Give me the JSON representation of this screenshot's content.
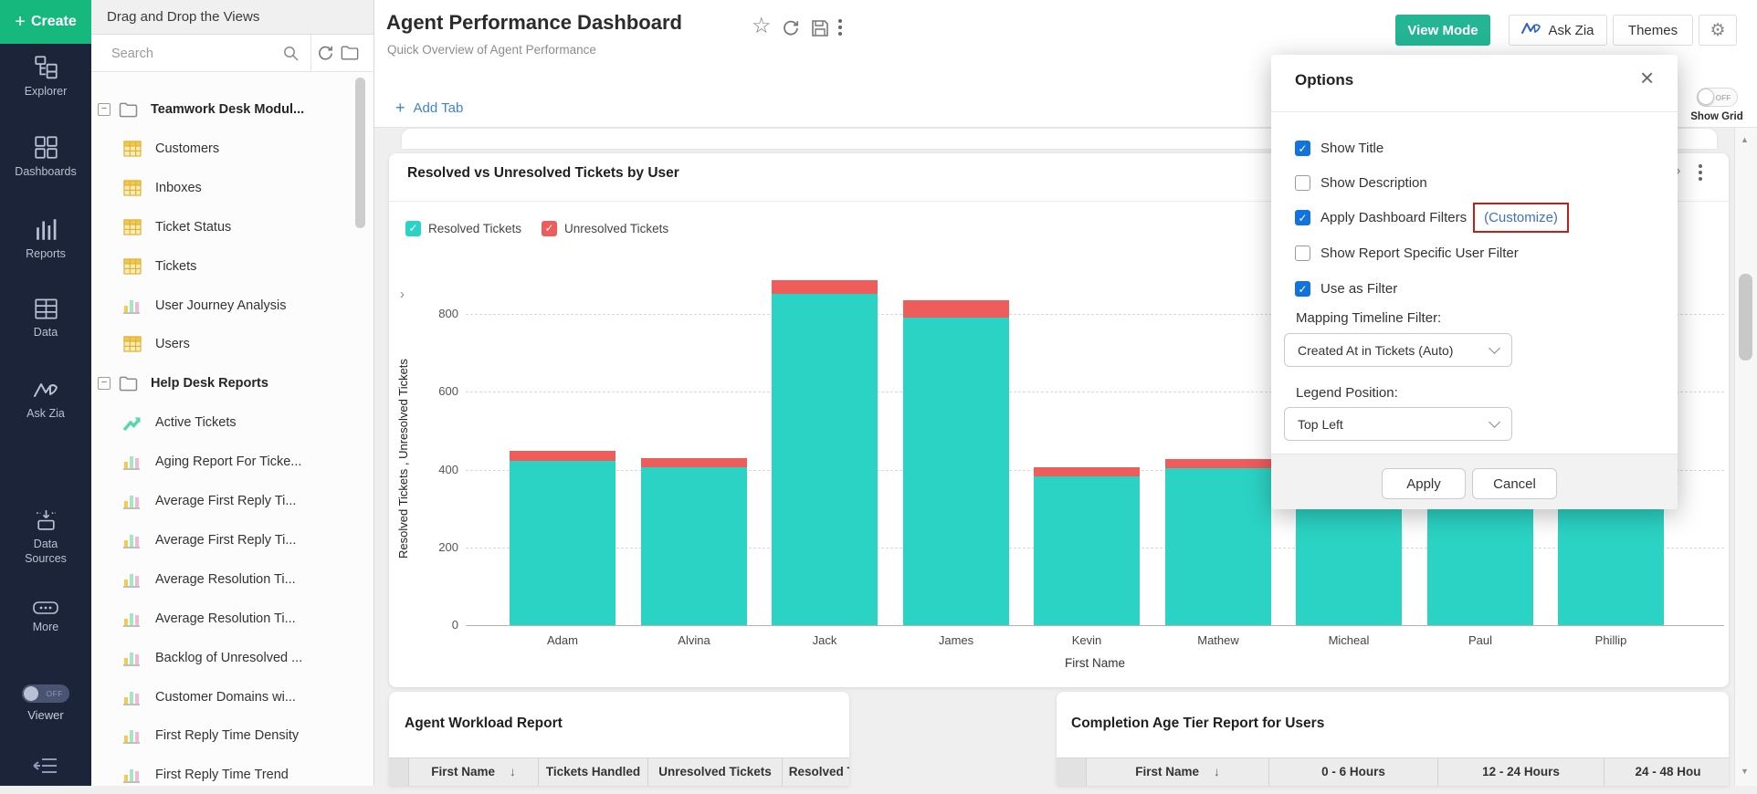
{
  "colors": {
    "nav_bg": "#1b2438",
    "create_green": "#17b87e",
    "view_mode_teal": "#23b594",
    "resolved_teal": "#2bd3c4",
    "unresolved_red": "#ee5c5c",
    "checkbox_blue": "#1273de",
    "annotation_red": "#c1201a",
    "link_blue": "#3b6fd8"
  },
  "left_nav": {
    "create_label": "Create",
    "items": [
      {
        "icon": "explorer-icon",
        "label": "Explorer"
      },
      {
        "icon": "dashboards-icon",
        "label": "Dashboards"
      },
      {
        "icon": "reports-icon",
        "label": "Reports"
      },
      {
        "icon": "data-icon",
        "label": "Data"
      },
      {
        "icon": "ask-zia-icon",
        "label": "Ask Zia"
      },
      {
        "icon": "data-sources-icon",
        "label": "Data Sources"
      },
      {
        "icon": "more-icon",
        "label": "More"
      }
    ],
    "viewer": {
      "label": "Viewer",
      "state": "OFF"
    }
  },
  "views_panel": {
    "header": "Drag and Drop the Views",
    "search_placeholder": "Search",
    "tree": [
      {
        "type": "folder",
        "label": "Teamwork Desk Modul..."
      },
      {
        "type": "table",
        "label": "Customers"
      },
      {
        "type": "table",
        "label": "Inboxes"
      },
      {
        "type": "table",
        "label": "Ticket Status"
      },
      {
        "type": "table",
        "label": "Tickets"
      },
      {
        "type": "chart",
        "label": "User Journey Analysis"
      },
      {
        "type": "table",
        "label": "Users"
      },
      {
        "type": "folder",
        "label": "Help Desk Reports"
      },
      {
        "type": "trend",
        "label": "Active Tickets"
      },
      {
        "type": "chart",
        "label": "Aging Report For Ticke..."
      },
      {
        "type": "chart",
        "label": "Average First Reply Ti..."
      },
      {
        "type": "chart",
        "label": "Average First Reply Ti..."
      },
      {
        "type": "chart",
        "label": "Average Resolution Ti..."
      },
      {
        "type": "chart",
        "label": "Average Resolution Ti..."
      },
      {
        "type": "chart",
        "label": "Backlog of Unresolved ..."
      },
      {
        "type": "chart",
        "label": "Customer Domains wi..."
      },
      {
        "type": "chart",
        "label": "First Reply Time Density"
      },
      {
        "type": "chart",
        "label": "First Reply Time Trend"
      }
    ]
  },
  "header": {
    "title": "Agent Performance Dashboard",
    "subtitle": "Quick Overview of Agent Performance",
    "icons": [
      "star-icon",
      "refresh-icon",
      "save-icon",
      "more-menu-icon"
    ],
    "buttons": {
      "view_mode": "View Mode",
      "ask_zia": "Ask Zia",
      "themes": "Themes"
    }
  },
  "toolbar": {
    "add_tab": "Add Tab",
    "show_grid": {
      "label": "Show Grid",
      "state": "OFF"
    }
  },
  "chart_card": {
    "title": "Resolved vs Unresolved Tickets by User",
    "legend": [
      {
        "label": "Resolved Tickets",
        "color": "#2bd3c4"
      },
      {
        "label": "Unresolved Tickets",
        "color": "#ee5c5c"
      }
    ]
  },
  "chart_data": {
    "type": "bar",
    "stacked": true,
    "categories": [
      "Adam",
      "Alvina",
      "Jack",
      "James",
      "Kevin",
      "Mathew",
      "Micheal",
      "Paul",
      "Phillip"
    ],
    "series": [
      {
        "name": "Resolved Tickets",
        "color": "#2bd3c4",
        "values": [
          422,
          406,
          852,
          790,
          382,
          404,
          420,
          430,
          418
        ]
      },
      {
        "name": "Unresolved Tickets",
        "color": "#ee5c5c",
        "values": [
          26,
          23,
          35,
          45,
          24,
          23,
          26,
          26,
          25
        ]
      }
    ],
    "xlabel": "First Name",
    "ylabel": "Resolved Tickets , Unresolved Tickets",
    "ylim": [
      0,
      880
    ],
    "yticks": [
      0,
      200,
      400,
      600,
      800
    ],
    "grid": "dashed-horizontal",
    "legend_position": "top-left"
  },
  "options_panel": {
    "title": "Options",
    "checkboxes": [
      {
        "label": "Show Title",
        "checked": true
      },
      {
        "label": "Show Description",
        "checked": false
      },
      {
        "label": "Apply Dashboard Filters",
        "checked": true,
        "link": "(Customize)",
        "link_highlighted": true
      },
      {
        "label": "Show Report Specific User Filter",
        "checked": false
      },
      {
        "label": "Use as Filter",
        "checked": true
      }
    ],
    "fields": [
      {
        "label": "Mapping Timeline Filter:",
        "value": "Created At in Tickets (Auto)"
      },
      {
        "label": "Legend Position:",
        "value": "Top Left"
      }
    ],
    "buttons": {
      "apply": "Apply",
      "cancel": "Cancel"
    }
  },
  "bottom_cards": [
    {
      "title": "Agent Workload Report",
      "columns": [
        {
          "label": ""
        },
        {
          "label": "First Name",
          "sort": "down"
        },
        {
          "label": "Tickets Handled"
        },
        {
          "label": "Unresolved Tickets"
        },
        {
          "label": "Resolved Ti"
        }
      ]
    },
    {
      "title": "Completion Age Tier Report for Users",
      "columns": [
        {
          "label": ""
        },
        {
          "label": "First Name",
          "sort": "down"
        },
        {
          "label": "0 - 6 Hours"
        },
        {
          "label": "12 - 24 Hours"
        },
        {
          "label": "24 - 48 Hou"
        }
      ]
    }
  ]
}
